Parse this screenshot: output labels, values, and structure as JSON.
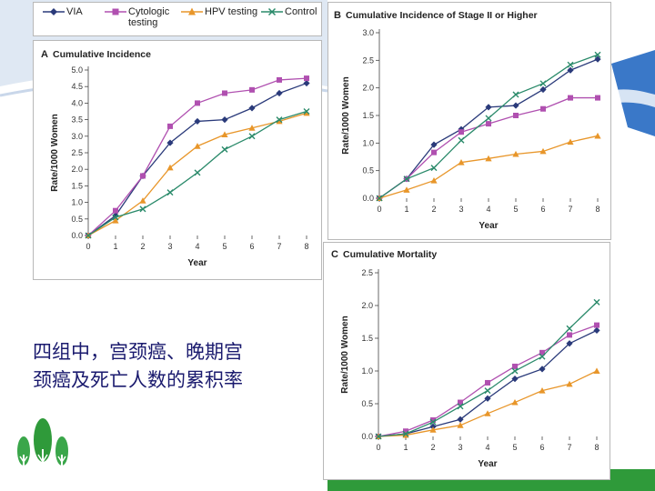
{
  "caption": {
    "line1": "四组中，宫颈癌、晚期宫",
    "line2": "颈癌及死亡人数的累积率"
  },
  "legend": [
    {
      "name": "VIA",
      "color": "#2a3a7a",
      "marker": "diamond"
    },
    {
      "name": "Cytologic\ntesting",
      "color": "#b050b0",
      "marker": "square"
    },
    {
      "name": "HPV testing",
      "color": "#e8962a",
      "marker": "triangle"
    },
    {
      "name": "Control",
      "color": "#2a8a6a",
      "marker": "x"
    }
  ],
  "chart_data": [
    {
      "panel": "A",
      "type": "line",
      "title": "Cumulative Incidence",
      "xlabel": "Year",
      "ylabel": "Rate/1000 Women",
      "x": [
        0,
        1,
        2,
        3,
        4,
        5,
        6,
        7,
        8
      ],
      "xticks": [
        "0",
        "1",
        "2",
        "3",
        "4",
        "5",
        "6",
        "7",
        "8"
      ],
      "ylim": [
        0,
        5.0
      ],
      "yticks": [
        "0.0",
        "0.5",
        "1.0",
        "1.5",
        "2.0",
        "2.5",
        "3.0",
        "3.5",
        "4.0",
        "4.5",
        "5.0"
      ],
      "series": [
        {
          "name": "VIA",
          "values": [
            0,
            0.6,
            1.8,
            2.8,
            3.45,
            3.5,
            3.85,
            4.3,
            4.6
          ]
        },
        {
          "name": "Cytologic testing",
          "values": [
            0,
            0.75,
            1.8,
            3.3,
            4.0,
            4.3,
            4.4,
            4.7,
            4.75
          ]
        },
        {
          "name": "HPV testing",
          "values": [
            0,
            0.45,
            1.05,
            2.05,
            2.7,
            3.05,
            3.25,
            3.45,
            3.7
          ]
        },
        {
          "name": "Control",
          "values": [
            0,
            0.55,
            0.8,
            1.3,
            1.9,
            2.6,
            3.0,
            3.5,
            3.75
          ]
        }
      ]
    },
    {
      "panel": "B",
      "type": "line",
      "title": "Cumulative Incidence of Stage II or Higher",
      "xlabel": "Year",
      "ylabel": "Rate/1000 Women",
      "x": [
        0,
        1,
        2,
        3,
        4,
        5,
        6,
        7,
        8
      ],
      "xticks": [
        "0",
        "1",
        "2",
        "3",
        "4",
        "5",
        "6",
        "7",
        "8"
      ],
      "ylim": [
        0,
        3.0
      ],
      "yticks": [
        "0.0",
        "0.5",
        "1.0",
        "1.5",
        "2.0",
        "2.5",
        "3.0"
      ],
      "series": [
        {
          "name": "VIA",
          "values": [
            0,
            0.35,
            0.97,
            1.25,
            1.65,
            1.68,
            1.97,
            2.32,
            2.52
          ]
        },
        {
          "name": "Cytologic testing",
          "values": [
            0,
            0.35,
            0.83,
            1.2,
            1.35,
            1.5,
            1.62,
            1.82,
            1.82
          ]
        },
        {
          "name": "HPV testing",
          "values": [
            0,
            0.15,
            0.32,
            0.65,
            0.72,
            0.8,
            0.85,
            1.02,
            1.13
          ]
        },
        {
          "name": "Control",
          "values": [
            0,
            0.35,
            0.55,
            1.05,
            1.45,
            1.88,
            2.08,
            2.42,
            2.6
          ]
        }
      ]
    },
    {
      "panel": "C",
      "type": "line",
      "title": "Cumulative Mortality",
      "xlabel": "Year",
      "ylabel": "Rate/1000 Women",
      "x": [
        0,
        1,
        2,
        3,
        4,
        5,
        6,
        7,
        8
      ],
      "xticks": [
        "0",
        "1",
        "2",
        "3",
        "4",
        "5",
        "6",
        "7",
        "8"
      ],
      "ylim": [
        0,
        2.5
      ],
      "yticks": [
        "0.0",
        "0.5",
        "1.0",
        "1.5",
        "2.0",
        "2.5"
      ],
      "series": [
        {
          "name": "VIA",
          "values": [
            0,
            0.04,
            0.15,
            0.26,
            0.58,
            0.88,
            1.03,
            1.42,
            1.62
          ]
        },
        {
          "name": "Cytologic testing",
          "values": [
            0,
            0.08,
            0.25,
            0.52,
            0.82,
            1.07,
            1.28,
            1.55,
            1.7
          ]
        },
        {
          "name": "HPV testing",
          "values": [
            0,
            0.02,
            0.1,
            0.17,
            0.35,
            0.52,
            0.7,
            0.8,
            1.0
          ]
        },
        {
          "name": "Control",
          "values": [
            0,
            0.04,
            0.22,
            0.46,
            0.7,
            1.0,
            1.22,
            1.65,
            2.05
          ]
        }
      ]
    }
  ]
}
